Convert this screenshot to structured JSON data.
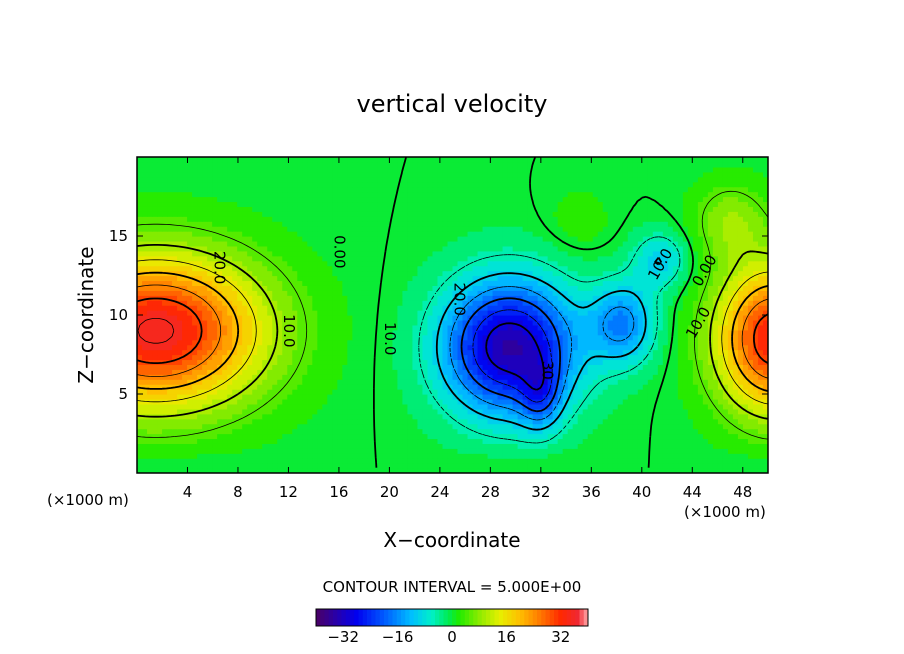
{
  "chart_data": {
    "type": "heatmap",
    "title": "vertical velocity",
    "xlabel": "X−coordinate",
    "ylabel": "Z−coordinate",
    "x_unit_label": "(×1000 m)",
    "y_unit_label": "(×1000 m)",
    "xlim": [
      0,
      50
    ],
    "ylim": [
      0,
      20
    ],
    "x_ticks": [
      {
        "v": 4,
        "label": "4"
      },
      {
        "v": 8,
        "label": "8"
      },
      {
        "v": 12,
        "label": "12"
      },
      {
        "v": 16,
        "label": "16"
      },
      {
        "v": 20,
        "label": "20"
      },
      {
        "v": 24,
        "label": "24"
      },
      {
        "v": 28,
        "label": "28"
      },
      {
        "v": 32,
        "label": "32"
      },
      {
        "v": 36,
        "label": "36"
      },
      {
        "v": 40,
        "label": "40"
      },
      {
        "v": 44,
        "label": "44"
      },
      {
        "v": 48,
        "label": "48"
      }
    ],
    "y_ticks": [
      {
        "v": 5,
        "label": "5"
      },
      {
        "v": 10,
        "label": "10"
      },
      {
        "v": 15,
        "label": "15"
      }
    ],
    "contour_interval_text": "CONTOUR INTERVAL = 5.000E+00",
    "contour_interval": 5,
    "colorbar": {
      "range": [
        -40,
        40
      ],
      "ticks": [
        {
          "v": -32,
          "label": "−32"
        },
        {
          "v": -16,
          "label": "−16"
        },
        {
          "v": 0,
          "label": "0"
        },
        {
          "v": 16,
          "label": "16"
        },
        {
          "v": 32,
          "label": "32"
        }
      ]
    },
    "field_features": [
      {
        "kind": "updraft",
        "x": 1.5,
        "z": 9,
        "peak": 36
      },
      {
        "kind": "downdraft",
        "x": 30,
        "z": 8,
        "peak": -34
      },
      {
        "kind": "downdraft",
        "x": 38,
        "z": 9,
        "peak": -16
      },
      {
        "kind": "updraft",
        "x": 50,
        "z": 8.5,
        "peak": 34
      }
    ],
    "contour_labels": [
      {
        "text": "20.0",
        "x": 6.5,
        "z": 13
      },
      {
        "text": "10.0",
        "x": 12,
        "z": 9
      },
      {
        "text": "0.00",
        "x": 16,
        "z": 14
      },
      {
        "text": "10.0",
        "x": 20,
        "z": 8.5
      },
      {
        "text": "20.0",
        "x": 25.5,
        "z": 11
      },
      {
        "text": "30",
        "x": 32.5,
        "z": 6.5
      },
      {
        "text": "10.0",
        "x": 41.5,
        "z": 13.2
      },
      {
        "text": "0.00",
        "x": 45,
        "z": 12.8
      },
      {
        "text": "10.0",
        "x": 44.5,
        "z": 9.5
      }
    ]
  }
}
